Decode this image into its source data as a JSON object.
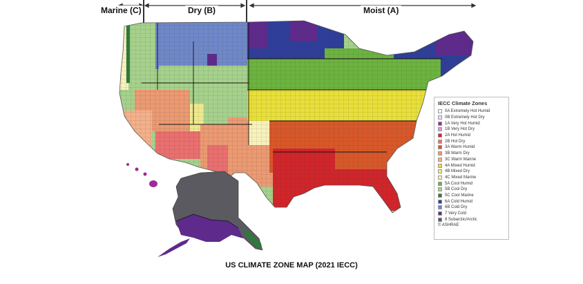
{
  "regions": {
    "marine": "Marine (C)",
    "dry": "Dry (B)",
    "moist": "Moist (A)"
  },
  "legend": {
    "title": "IECC Climate Zones",
    "items": [
      {
        "label": "0A Extremely Hot Humid",
        "color": "#ffffff"
      },
      {
        "label": "0B Extremely Hot Dry",
        "color": "#e8e0ee"
      },
      {
        "label": "1A Very Hot Humid",
        "color": "#a0289a"
      },
      {
        "label": "1B Very Hot Dry",
        "color": "#d59fd0"
      },
      {
        "label": "2A Hot Humid",
        "color": "#d1252a"
      },
      {
        "label": "2B Hot Dry",
        "color": "#e9706f"
      },
      {
        "label": "3A Warm Humid",
        "color": "#d8582a"
      },
      {
        "label": "3B Warm Dry",
        "color": "#eb9a72"
      },
      {
        "label": "3C Warm Marine",
        "color": "#f4b08a"
      },
      {
        "label": "4A Mixed Humid",
        "color": "#e8df3a"
      },
      {
        "label": "4B Mixed Dry",
        "color": "#f0e98c"
      },
      {
        "label": "4C Mixed Marine",
        "color": "#f7f1bc"
      },
      {
        "label": "5A Cool Humid",
        "color": "#6cb33f"
      },
      {
        "label": "5B Cool Dry",
        "color": "#a6d18c"
      },
      {
        "label": "5C Cool Marine",
        "color": "#2d7a3a"
      },
      {
        "label": "6A Cold Humid",
        "color": "#2e3e9a"
      },
      {
        "label": "6B Cold Dry",
        "color": "#6f88c8"
      },
      {
        "label": "7 Very Cold",
        "color": "#5e2a8c"
      },
      {
        "label": "8 Subarctic/Arctic",
        "color": "#5a5a60"
      }
    ],
    "credit": "© ASHRAE"
  },
  "caption": "US CLIMATE ZONE MAP (2021 IECC)"
}
